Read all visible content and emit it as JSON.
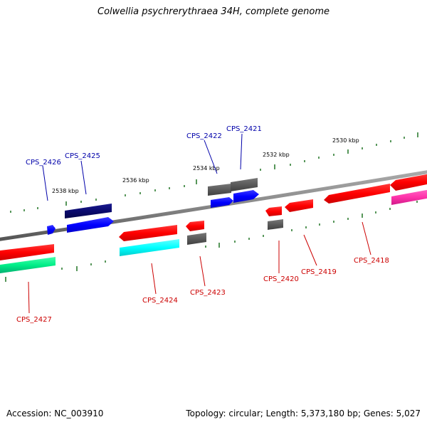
{
  "title": "Colwellia psychrerythraea 34H, complete genome",
  "accession": "Accession: NC_003910",
  "summary": "Topology: circular; Length: 5,373,180 bp; Genes: 5,027",
  "tick_labels": [
    "2538 kbp",
    "2536 kbp",
    "2534 kbp",
    "2532 kbp",
    "2530 kbp"
  ],
  "forward_genes": [
    {
      "id": "CPS_2426",
      "color": "#0000cc"
    },
    {
      "id": "CPS_2425",
      "color": "#0a0a6e"
    },
    {
      "id": "CPS_2422",
      "color": "#5a5a5a"
    },
    {
      "id": "CPS_2421",
      "color": "#5a5a5a"
    }
  ],
  "reverse_genes": [
    {
      "id": "CPS_2427",
      "color": "#ff0000"
    },
    {
      "id": "CPS_2424",
      "color": "#ff0000"
    },
    {
      "id": "CPS_2423",
      "color": "#ff0000"
    },
    {
      "id": "CPS_2420",
      "color": "#ff0000"
    },
    {
      "id": "CPS_2419",
      "color": "#ff0000"
    },
    {
      "id": "CPS_2418",
      "color": "#ff0000"
    }
  ],
  "colors": {
    "forward_label": "#0000aa",
    "reverse_label": "#cc0000",
    "backbone": "#888888",
    "tick": "#2e7d32",
    "blue": "#0000ff",
    "navy": "#0a0a6e",
    "red": "#ff0000",
    "gray": "#5a5a5a",
    "cyan": "#00ffff",
    "teal": "#00cc88",
    "magenta": "#ff33aa"
  }
}
